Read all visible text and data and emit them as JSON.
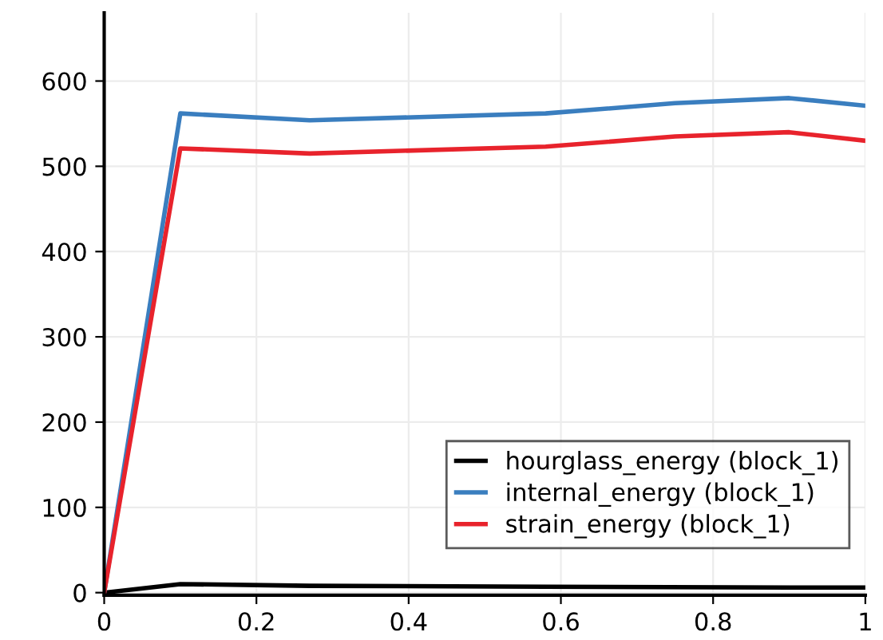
{
  "chart_data": {
    "type": "line",
    "xlim": [
      0,
      1
    ],
    "ylim": [
      -3,
      680
    ],
    "xticks": [
      0,
      0.2,
      0.4,
      0.6,
      0.8,
      1
    ],
    "yticks": [
      0,
      100,
      200,
      300,
      400,
      500,
      600
    ],
    "grid": true,
    "legend": "bottom right",
    "line_style": "solid",
    "marker": "none",
    "series": [
      {
        "name": "hourglass_energy (block_1)",
        "color": "#000000",
        "x": [
          0,
          0.1,
          0.27,
          0.58,
          0.9,
          1.0
        ],
        "values": [
          0,
          10,
          8,
          7,
          6,
          6
        ]
      },
      {
        "name": "internal_energy (block_1)",
        "color": "#3a7ebf",
        "x": [
          0,
          0.1,
          0.27,
          0.58,
          0.75,
          0.9,
          1.0
        ],
        "values": [
          0,
          562,
          554,
          562,
          574,
          580,
          571
        ]
      },
      {
        "name": "strain_energy (block_1)",
        "color": "#e8232c",
        "x": [
          0,
          0.1,
          0.27,
          0.58,
          0.75,
          0.9,
          1.0
        ],
        "values": [
          0,
          521,
          515,
          523,
          535,
          540,
          530
        ]
      }
    ]
  }
}
